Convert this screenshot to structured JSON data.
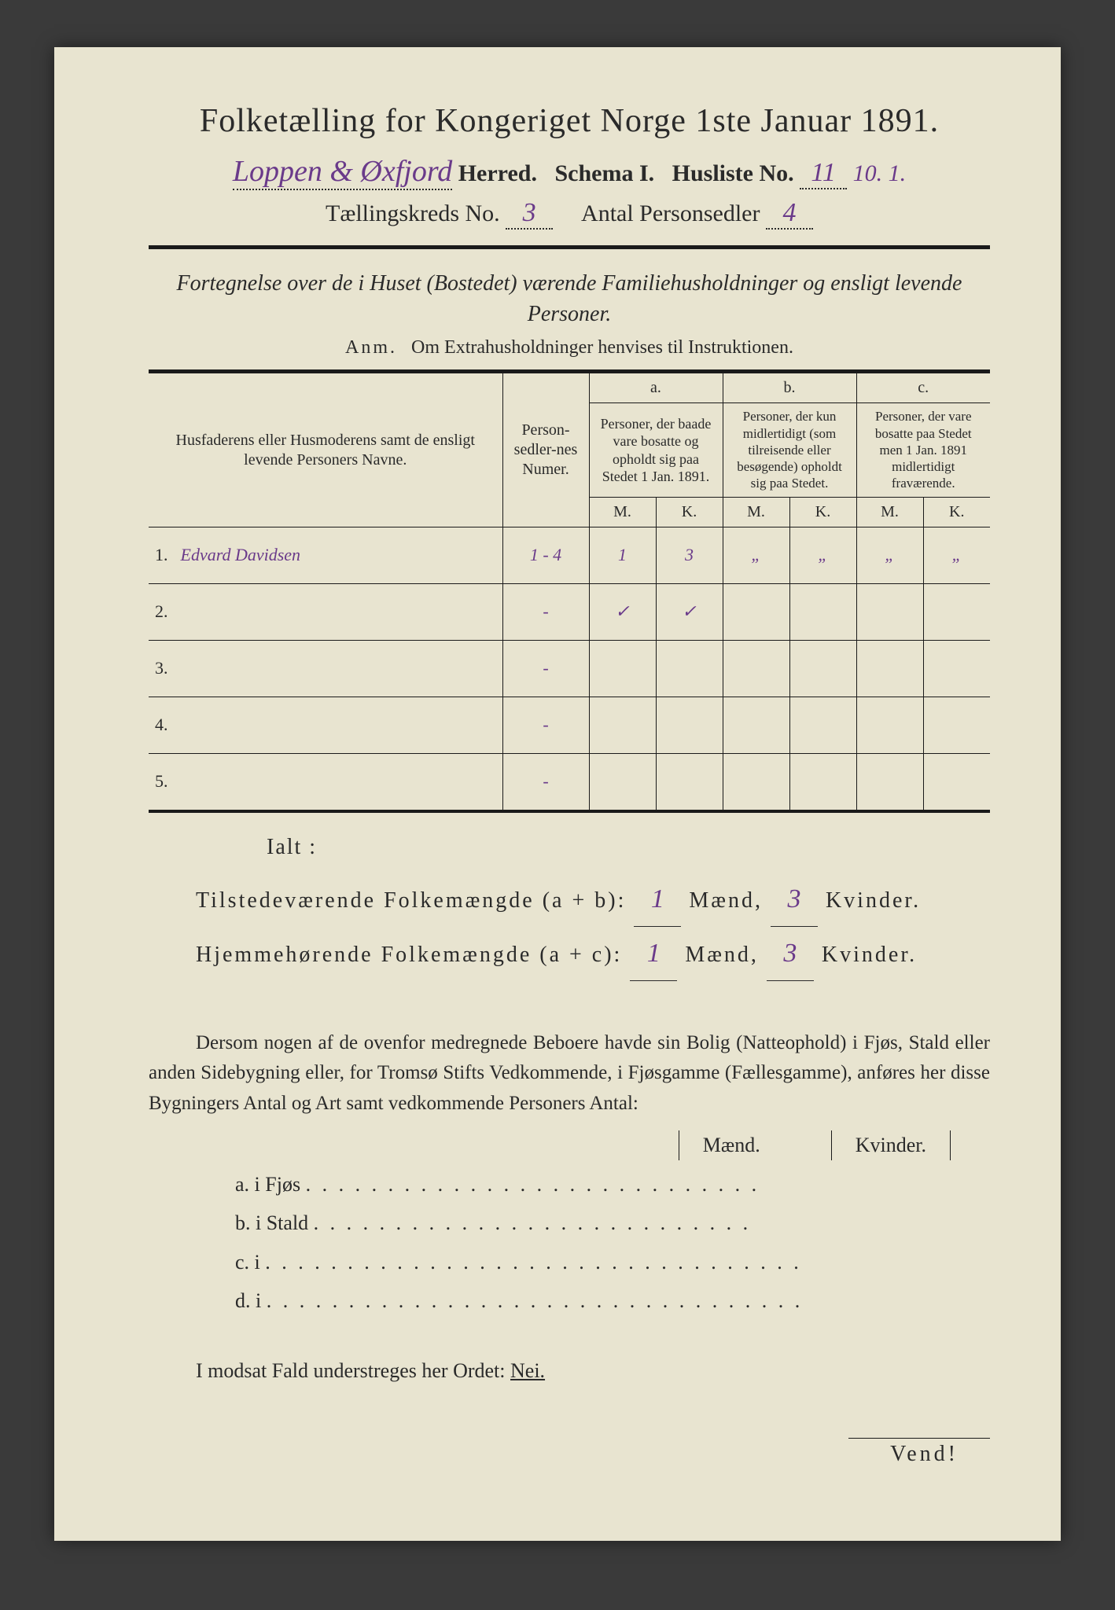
{
  "colors": {
    "paper_bg": "#e8e4d0",
    "ink": "#2a2a2a",
    "handwriting": "#6a3a8a",
    "page_bg": "#3a3a3a"
  },
  "header": {
    "title": "Folketælling for Kongeriget Norge 1ste Januar 1891.",
    "herred_hand": "Loppen & Øxfjord",
    "herred_print": "Herred.",
    "schema": "Schema I.",
    "husliste_label": "Husliste No.",
    "husliste_no": "11",
    "husliste_extra": "10. 1.",
    "kreds_label": "Tællingskreds No.",
    "kreds_no": "3",
    "personsedler_label": "Antal Personsedler",
    "personsedler_no": "4"
  },
  "subtitle": "Fortegnelse over de i Huset (Bostedet) værende Familiehusholdninger og ensligt levende Personer.",
  "anm_label": "Anm.",
  "anm_text": "Om Extrahusholdninger henvises til Instruktionen.",
  "table": {
    "head_name": "Husfaderens eller Husmoderens samt de ensligt levende Personers Navne.",
    "head_num": "Person-sedler-nes Numer.",
    "a_label": "a.",
    "a_text": "Personer, der baade vare bosatte og opholdt sig paa Stedet 1 Jan. 1891.",
    "b_label": "b.",
    "b_text": "Personer, der kun midlertidigt (som tilreisende eller besøgende) opholdt sig paa Stedet.",
    "c_label": "c.",
    "c_text": "Personer, der vare bosatte paa Stedet men 1 Jan. 1891 midlertidigt fraværende.",
    "m": "M.",
    "k": "K.",
    "rows": [
      {
        "n": "1.",
        "name": "Edvard Davidsen",
        "num": "1 - 4",
        "aM": "1",
        "aK": "3",
        "bM": "„",
        "bK": "„",
        "cM": "„",
        "cK": "„"
      },
      {
        "n": "2.",
        "name": "",
        "num": "-",
        "aM": "✓",
        "aK": "✓",
        "bM": "",
        "bK": "",
        "cM": "",
        "cK": ""
      },
      {
        "n": "3.",
        "name": "",
        "num": "-",
        "aM": "",
        "aK": "",
        "bM": "",
        "bK": "",
        "cM": "",
        "cK": ""
      },
      {
        "n": "4.",
        "name": "",
        "num": "-",
        "aM": "",
        "aK": "",
        "bM": "",
        "bK": "",
        "cM": "",
        "cK": ""
      },
      {
        "n": "5.",
        "name": "",
        "num": "-",
        "aM": "",
        "aK": "",
        "bM": "",
        "bK": "",
        "cM": "",
        "cK": ""
      }
    ]
  },
  "ialt": "Ialt :",
  "totals": {
    "line1_a": "Tilstedeværende Folkemængde (a + b):",
    "line1_m": "1",
    "line1_mid": "Mænd,",
    "line1_k": "3",
    "line1_end": "Kvinder.",
    "line2_a": "Hjemmehørende Folkemængde (a + c):",
    "line2_m": "1",
    "line2_mid": "Mænd,",
    "line2_k": "3",
    "line2_end": "Kvinder."
  },
  "para": "Dersom nogen af de ovenfor medregnede Beboere havde sin Bolig (Natteophold) i Fjøs, Stald eller anden Sidebygning eller, for Tromsø Stifts Vedkommende, i Fjøsgamme (Fællesgamme), anføres her disse Bygningers Antal og Art samt vedkommende Personers Antal:",
  "maend": "Mænd.",
  "kvinder": "Kvinder.",
  "abcd": {
    "a": "a.  i      Fjøs",
    "b": "b.  i      Stald",
    "c": "c.  i",
    "d": "d.  i"
  },
  "nei_line_a": "I modsat Fald understreges her Ordet:",
  "nei": "Nei.",
  "vend": "Vend!"
}
